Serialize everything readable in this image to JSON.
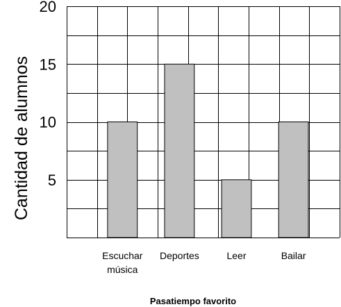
{
  "chart_data": {
    "type": "bar",
    "categories": [
      [
        "Escuchar",
        "música"
      ],
      [
        "Deportes"
      ],
      [
        "Leer"
      ],
      [
        "Bailar"
      ]
    ],
    "values": [
      10,
      15,
      5,
      10
    ],
    "ylim": [
      0,
      20
    ],
    "yticks": [
      5,
      10,
      15,
      20
    ],
    "xlabel": "Pasatiempo favorito",
    "ylabel": "Cantidad de alumnos",
    "grid": true,
    "bar_color": "#c0c0c0"
  }
}
